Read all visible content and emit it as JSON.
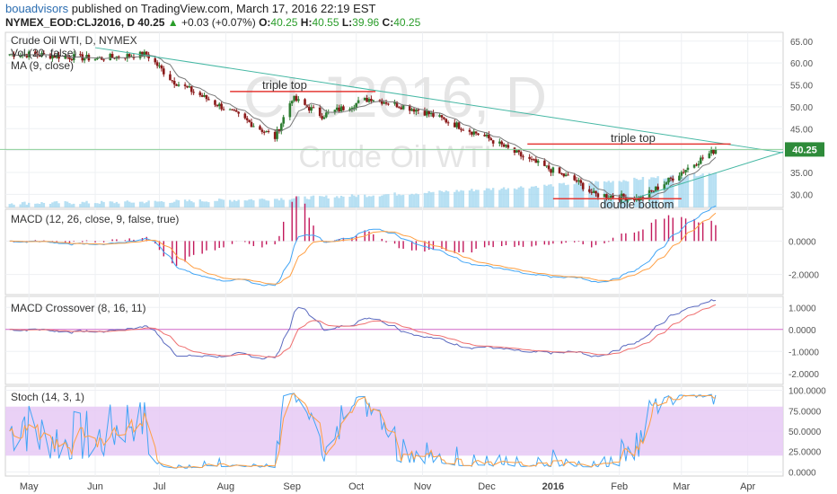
{
  "header": {
    "author": "bouadvisors",
    "published": "published on TradingView.com, March 17, 2016 22:19 EST",
    "symbol": "NYMEX_EOD:CLJ2016, D",
    "last": "40.25",
    "change": "+0.03 (+0.07%)",
    "open_label": "O:",
    "open": "40.25",
    "high_label": "H:",
    "high": "40.55",
    "low_label": "L:",
    "low": "39.96",
    "close_label": "C:",
    "close": "40.25"
  },
  "watermark": {
    "symbol": "CLJ2016, D",
    "name": "Crude Oil WTI"
  },
  "colors": {
    "up": "#2e7d32",
    "down": "#8b1a1a",
    "trend": "#46b8a4",
    "resistance": "#e53935",
    "macd": "#42a5f5",
    "signal": "#ff9f43",
    "hist": "#c2185b",
    "crossover_fast": "#5c6bc0",
    "crossover_slow": "#ef6f6f",
    "stoch_band": "#e6c9f5",
    "volume": "#9fd6ef"
  },
  "panels": [
    {
      "label": "Crude Oil WTI, D, NYMEX",
      "label2": "Vol (20, false)",
      "label3": "MA (9, close)",
      "ticks": [
        "65.00",
        "60.00",
        "55.00",
        "50.00",
        "45.00",
        "40.00",
        "35.00",
        "30.00"
      ]
    },
    {
      "label": "MACD (12, 26, close, 9, false, true)",
      "ticks": [
        "0.0000",
        "-2.0000"
      ]
    },
    {
      "label": "MACD Crossover (8, 16, 11)",
      "ticks": [
        "1.0000",
        "0.0000",
        "-1.0000",
        "-2.0000"
      ]
    },
    {
      "label": "Stoch (14, 3, 1)",
      "ticks": [
        "100.0000",
        "75.0000",
        "50.0000",
        "25.0000",
        "0.0000"
      ]
    }
  ],
  "price_badge": "40.25",
  "annotations": [
    "triple top",
    "triple top",
    "double bottom"
  ],
  "xaxis": [
    "May",
    "Jun",
    "Jul",
    "Aug",
    "Sep",
    "Oct",
    "Nov",
    "Dec",
    "2016",
    "Feb",
    "Mar",
    "Apr"
  ],
  "chart_data": {
    "type": "candlestick",
    "timeframe": "D",
    "ylim": [
      27,
      67
    ],
    "closes": [
      {
        "date": "2015-05",
        "close": 62
      },
      {
        "date": "2015-06",
        "close": 61
      },
      {
        "date": "2015-06-25",
        "close": 62
      },
      {
        "date": "2015-07-07",
        "close": 56
      },
      {
        "date": "2015-08-03",
        "close": 49
      },
      {
        "date": "2015-08-24",
        "close": 43
      },
      {
        "date": "2015-09-01",
        "close": 52
      },
      {
        "date": "2015-09-15",
        "close": 48
      },
      {
        "date": "2015-10-08",
        "close": 52
      },
      {
        "date": "2015-11-01",
        "close": 49
      },
      {
        "date": "2015-12-01",
        "close": 43
      },
      {
        "date": "2015-12-20",
        "close": 38
      },
      {
        "date": "2016-01-12",
        "close": 33
      },
      {
        "date": "2016-01-20",
        "close": 30
      },
      {
        "date": "2016-02-11",
        "close": 29
      },
      {
        "date": "2016-03-17",
        "close": 40.25
      }
    ],
    "triple_top_level": 53.5,
    "resistance_level": 41.5,
    "double_bottom_level": 29
  }
}
